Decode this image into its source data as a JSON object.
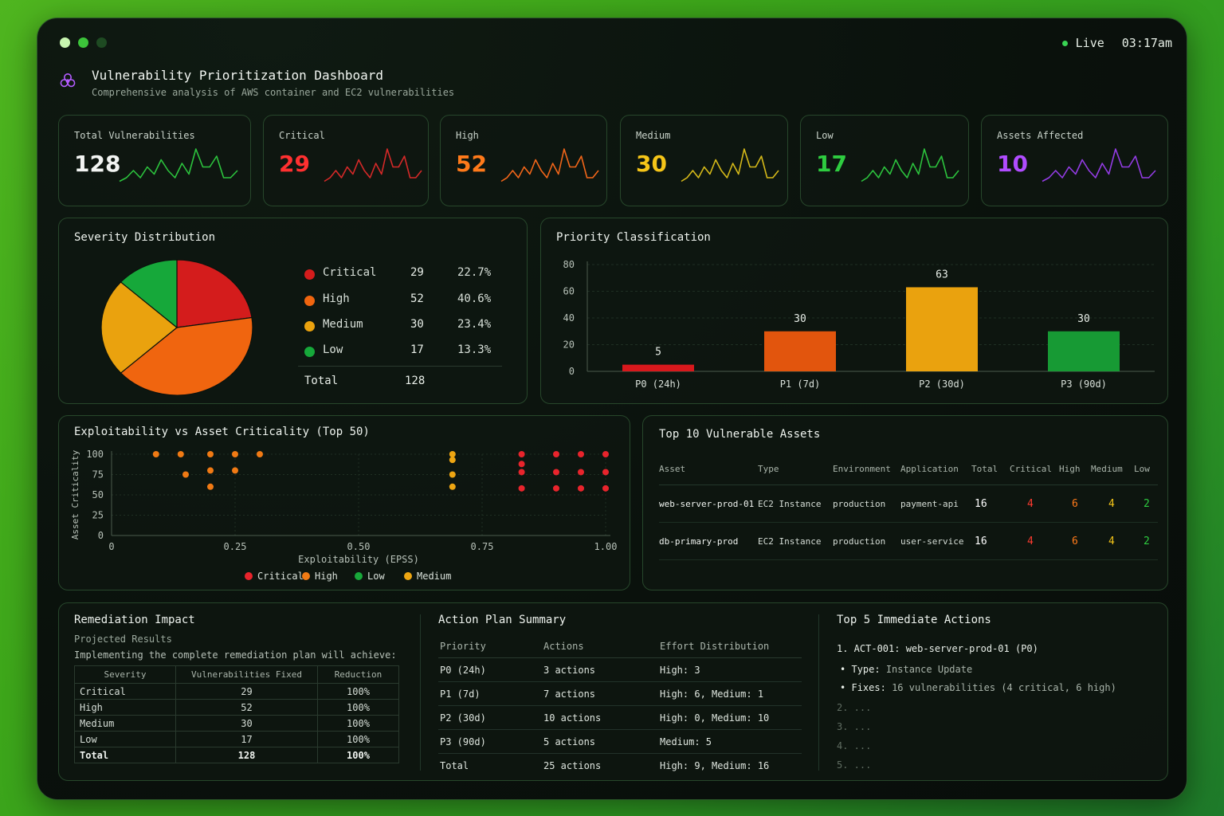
{
  "window": {
    "status": "Live",
    "time": "03:17am",
    "dot_colors": [
      "#c8f5b0",
      "#3cc43a",
      "#1e4a22"
    ]
  },
  "header": {
    "title": "Vulnerability Prioritization Dashboard",
    "subtitle": "Comprehensive analysis of AWS container and EC2 vulnerabilities",
    "icon": "biohazard-icon"
  },
  "kpis": [
    {
      "label": "Total Vulnerabilities",
      "value": "128",
      "color": "#f2f4f2",
      "spark_color": "#2ecc40"
    },
    {
      "label": "Critical",
      "value": "29",
      "color": "#ff3030",
      "spark_color": "#e02a2a"
    },
    {
      "label": "High",
      "value": "52",
      "color": "#ff7a1a",
      "spark_color": "#ff6a1a"
    },
    {
      "label": "Medium",
      "value": "30",
      "color": "#f5c518",
      "spark_color": "#e0c21a"
    },
    {
      "label": "Low",
      "value": "17",
      "color": "#2ecc40",
      "spark_color": "#2ecc40"
    },
    {
      "label": "Assets Affected",
      "value": "10",
      "color": "#b04cff",
      "spark_color": "#9b3ef0"
    }
  ],
  "severity": {
    "title": "Severity Distribution",
    "rows": [
      {
        "name": "Critical",
        "count": "29",
        "pct": "22.7%",
        "color": "#d41c1c"
      },
      {
        "name": "High",
        "count": "52",
        "pct": "40.6%",
        "color": "#f0650f"
      },
      {
        "name": "Medium",
        "count": "30",
        "pct": "23.4%",
        "color": "#eaa20e"
      },
      {
        "name": "Low",
        "count": "17",
        "pct": "13.3%",
        "color": "#16a83a"
      }
    ],
    "total_label": "Total",
    "total": "128"
  },
  "priority": {
    "title": "Priority Classification"
  },
  "scatter": {
    "title": "Exploitability vs Asset Criticality (Top 50)"
  },
  "assets": {
    "title": "Top 10 Vulnerable Assets",
    "headers": [
      "Asset",
      "Type",
      "Environment",
      "Application",
      "Total",
      "Critical",
      "High",
      "Medium",
      "Low"
    ],
    "rows": [
      [
        "web-server-prod-01",
        "EC2 Instance",
        "production",
        "payment-api",
        "16",
        "4",
        "6",
        "4",
        "2"
      ],
      [
        "db-primary-prod",
        "EC2 Instance",
        "production",
        "user-service",
        "16",
        "4",
        "6",
        "4",
        "2"
      ]
    ]
  },
  "remediation": {
    "title": "Remediation Impact",
    "subtitle": "Projected Results",
    "desc": "Implementing the complete remediation plan will achieve:",
    "headers": [
      "Severity",
      "Vulnerabilities Fixed",
      "Reduction"
    ],
    "rows": [
      [
        "Critical",
        "29",
        "100%"
      ],
      [
        "High",
        "52",
        "100%"
      ],
      [
        "Medium",
        "30",
        "100%"
      ],
      [
        "Low",
        "17",
        "100%"
      ],
      [
        "Total",
        "128",
        "100%"
      ]
    ]
  },
  "action_plan": {
    "title": "Action Plan Summary",
    "headers": [
      "Priority",
      "Actions",
      "Effort Distribution"
    ],
    "rows": [
      [
        "P0 (24h)",
        "3 actions",
        "High: 3"
      ],
      [
        "P1 (7d)",
        "7 actions",
        "High: 6, Medium: 1"
      ],
      [
        "P2 (30d)",
        "10 actions",
        "High: 0, Medium: 10"
      ],
      [
        "P3 (90d)",
        "5 actions",
        "Medium: 5"
      ],
      [
        "Total",
        "25 actions",
        "High: 9, Medium: 16"
      ]
    ]
  },
  "top_actions": {
    "title": "Top 5 Immediate Actions",
    "first": "1. ACT-001: web-server-prod-01 (P0)",
    "type_label": "Type:",
    "type_value": "Instance Update",
    "fixes_label": "Fixes:",
    "fixes_value": "16 vulnerabilities (4 critical, 6 high)",
    "rest": [
      "2. ...",
      "3. ...",
      "4. ...",
      "5. ..."
    ]
  },
  "chart_data": [
    {
      "type": "line",
      "title": "",
      "note": "KPI sparklines (trend only, no axes)",
      "series": [
        {
          "values": [
            3,
            4,
            6,
            4,
            7,
            5,
            9,
            6,
            4,
            8,
            5,
            12,
            7,
            7,
            10,
            4,
            4,
            6
          ]
        },
        {
          "values": [
            3,
            4,
            6,
            4,
            7,
            5,
            9,
            6,
            4,
            8,
            5,
            12,
            7,
            7,
            10,
            4,
            4,
            6
          ]
        },
        {
          "values": [
            3,
            4,
            6,
            4,
            7,
            5,
            9,
            6,
            4,
            8,
            5,
            12,
            7,
            7,
            10,
            4,
            4,
            6
          ]
        },
        {
          "values": [
            3,
            4,
            6,
            4,
            7,
            5,
            9,
            6,
            4,
            8,
            5,
            12,
            7,
            7,
            10,
            4,
            4,
            6
          ]
        },
        {
          "values": [
            3,
            4,
            6,
            4,
            7,
            5,
            9,
            6,
            4,
            8,
            5,
            12,
            7,
            7,
            10,
            4,
            4,
            6
          ]
        },
        {
          "values": [
            3,
            4,
            6,
            4,
            7,
            5,
            9,
            6,
            4,
            8,
            5,
            12,
            7,
            7,
            10,
            4,
            4,
            6
          ]
        }
      ]
    },
    {
      "type": "pie",
      "title": "Severity Distribution",
      "categories": [
        "Critical",
        "High",
        "Medium",
        "Low"
      ],
      "values": [
        29,
        52,
        30,
        17
      ],
      "colors": [
        "#d41c1c",
        "#f0650f",
        "#eaa20e",
        "#16a83a"
      ]
    },
    {
      "type": "bar",
      "title": "Priority Classification",
      "categories": [
        "P0 (24h)",
        "P1 (7d)",
        "P2 (30d)",
        "P3 (90d)"
      ],
      "values": [
        5,
        30,
        63,
        30
      ],
      "colors": [
        "#d8181c",
        "#e2550d",
        "#eaa20e",
        "#179a34"
      ],
      "ylim": [
        0,
        80
      ],
      "yticks": [
        0,
        20,
        40,
        60,
        80
      ],
      "xlabel": "",
      "ylabel": ""
    },
    {
      "type": "scatter",
      "title": "Exploitability vs Asset Criticality (Top 50)",
      "xlabel": "Exploitability (EPSS)",
      "ylabel": "Asset Criticality",
      "xlim": [
        0,
        1
      ],
      "ylim": [
        0,
        100
      ],
      "xticks": [
        "0",
        "0.25",
        "0.50",
        "0.75",
        "1.00"
      ],
      "yticks": [
        "0",
        "25",
        "50",
        "75",
        "100"
      ],
      "legend": "bottom",
      "series": [
        {
          "name": "Critical",
          "color": "#e8242c",
          "points": [
            [
              0.83,
              100
            ],
            [
              0.83,
              88
            ],
            [
              0.83,
              78
            ],
            [
              0.83,
              58
            ],
            [
              0.9,
              100
            ],
            [
              0.9,
              78
            ],
            [
              0.9,
              58
            ],
            [
              0.95,
              100
            ],
            [
              0.95,
              78
            ],
            [
              0.95,
              58
            ],
            [
              1.0,
              100
            ],
            [
              1.0,
              78
            ],
            [
              1.0,
              58
            ]
          ]
        },
        {
          "name": "High",
          "color": "#f07a14",
          "points": [
            [
              0.09,
              100
            ],
            [
              0.14,
              100
            ],
            [
              0.15,
              75
            ],
            [
              0.2,
              100
            ],
            [
              0.2,
              80
            ],
            [
              0.2,
              60
            ],
            [
              0.25,
              100
            ],
            [
              0.25,
              80
            ],
            [
              0.3,
              100
            ]
          ]
        },
        {
          "name": "Low",
          "color": "#18a83a",
          "points": []
        },
        {
          "name": "Medium",
          "color": "#eea612",
          "points": [
            [
              0.69,
              100
            ],
            [
              0.69,
              93
            ],
            [
              0.69,
              75
            ],
            [
              0.69,
              60
            ]
          ]
        }
      ]
    }
  ]
}
